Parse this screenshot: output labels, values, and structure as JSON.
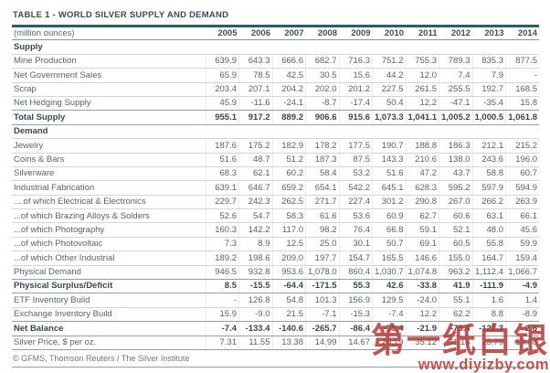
{
  "title": "TABLE 1 - WORLD SILVER SUPPLY AND DEMAND",
  "footer": "© GFMS, Thomson Reuters / The Silver Institute",
  "watermark": {
    "brand": "第一纸白银",
    "url": "www.diyizby.com"
  },
  "colors": {
    "title_rule_teal": "#17666c",
    "watermark_red": "#c2453c",
    "text_dark": "#3c4750",
    "text_gray": "#59636c"
  },
  "chart_data": {
    "type": "table",
    "title": "TABLE 1 - WORLD SILVER SUPPLY AND DEMAND",
    "unit": "(million ounces)",
    "columns": [
      "2005",
      "2006",
      "2007",
      "2008",
      "2009",
      "2010",
      "2011",
      "2012",
      "2013",
      "2014"
    ],
    "rows": [
      {
        "label": "Supply",
        "type": "section",
        "values": [
          "",
          "",
          "",
          "",
          "",
          "",
          "",
          "",
          "",
          ""
        ]
      },
      {
        "label": "Mine Production",
        "type": "data",
        "values": [
          "639.9",
          "643.3",
          "666.6",
          "682.7",
          "716.3",
          "751.2",
          "755.3",
          "789.3",
          "835.3",
          "877.5"
        ]
      },
      {
        "label": "Net Government Sales",
        "type": "data",
        "values": [
          "65.9",
          "78.5",
          "42.5",
          "30.5",
          "15.6",
          "44.2",
          "12.0",
          "7.4",
          "7.9",
          "-"
        ]
      },
      {
        "label": "Scrap",
        "type": "data",
        "values": [
          "203.4",
          "207.1",
          "204.2",
          "202.0",
          "201.2",
          "227.5",
          "261.5",
          "255.5",
          "192.7",
          "168.5"
        ]
      },
      {
        "label": "Net Hedging Supply",
        "type": "data",
        "values": [
          "45.9",
          "-11.6",
          "-24.1",
          "-8.7",
          "-17.4",
          "50.4",
          "12.2",
          "-47.1",
          "-35.4",
          "15.8"
        ]
      },
      {
        "label": "Total Supply",
        "type": "bold",
        "values": [
          "955.1",
          "917.2",
          "889.2",
          "906.6",
          "915.6",
          "1,073.3",
          "1,041.1",
          "1,005.2",
          "1,000.5",
          "1,061.8"
        ]
      },
      {
        "label": "Demand",
        "type": "section",
        "values": [
          "",
          "",
          "",
          "",
          "",
          "",
          "",
          "",
          "",
          ""
        ]
      },
      {
        "label": "Jewelry",
        "type": "data",
        "values": [
          "187.6",
          "175.2",
          "182.9",
          "178.2",
          "177.5",
          "190.7",
          "188.8",
          "186.3",
          "212.1",
          "215.2"
        ]
      },
      {
        "label": "Coins & Bars",
        "type": "data",
        "values": [
          "51.6",
          "48.7",
          "51.2",
          "187.3",
          "87.5",
          "143.3",
          "210.6",
          "138.0",
          "243.6",
          "196.0"
        ]
      },
      {
        "label": "Silverware",
        "type": "data",
        "values": [
          "68.3",
          "62.1",
          "60.2",
          "58.4",
          "53.2",
          "51.6",
          "47.2",
          "43.7",
          "58.8",
          "60.7"
        ]
      },
      {
        "label": "Industrial Fabrication",
        "type": "data",
        "values": [
          "639.1",
          "646.7",
          "659.2",
          "654.1",
          "542.2",
          "645.1",
          "628.3",
          "595.2",
          "597.9",
          "594.9"
        ]
      },
      {
        "label": "....of which Electrical & Electronics",
        "type": "data",
        "values": [
          "229.7",
          "242.3",
          "262.5",
          "271.7",
          "227.4",
          "301.2",
          "290.8",
          "267.0",
          "266.2",
          "263.9"
        ]
      },
      {
        "label": "...of which Brazing Alloys & Solders",
        "type": "data",
        "values": [
          "52.6",
          "54.7",
          "58.3",
          "61.6",
          "53.6",
          "60.9",
          "62.7",
          "60.6",
          "63.1",
          "66.1"
        ]
      },
      {
        "label": "...of which Photography",
        "type": "data",
        "values": [
          "160.3",
          "142.2",
          "117.0",
          "98.2",
          "76.4",
          "66.8",
          "59.1",
          "52.1",
          "48.0",
          "45.6"
        ]
      },
      {
        "label": "...of which Photovoltaic",
        "type": "data",
        "values": [
          "7.3",
          "8.9",
          "12.5",
          "25.0",
          "30.1",
          "50.7",
          "69.1",
          "60.5",
          "55.8",
          "59.9"
        ]
      },
      {
        "label": "...of which Other Industrial",
        "type": "data",
        "values": [
          "189.2",
          "198.6",
          "209.0",
          "197.7",
          "154.7",
          "165.5",
          "146.6",
          "155.0",
          "164.7",
          "159.4"
        ]
      },
      {
        "label": "Physical Demand",
        "type": "data",
        "values": [
          "946.5",
          "932.8",
          "953.6",
          "1,078.0",
          "860.4",
          "1,030.7",
          "1,074.8",
          "963.2",
          "1,112.4",
          "1,066.7"
        ]
      },
      {
        "label": "Physical Surplus/Deficit",
        "type": "bold",
        "values": [
          "8.5",
          "-15.5",
          "-64.4",
          "-171.5",
          "55.3",
          "42.6",
          "-33.8",
          "41.9",
          "-111.9",
          "-4.9"
        ]
      },
      {
        "label": "ETF Inventory Build",
        "type": "data",
        "values": [
          "-",
          "126.8",
          "54.8",
          "101.3",
          "156.9",
          "129.5",
          "-24.0",
          "55.1",
          "1.6",
          "1.4"
        ]
      },
      {
        "label": "Exchange Inventory Build",
        "type": "data",
        "values": [
          "15.9",
          "-9.0",
          "21.5",
          "-7.1",
          "-15.3",
          "-7.4",
          "12.2",
          "62.2",
          "8.8",
          "-8.9"
        ]
      },
      {
        "label": "Net Balance",
        "type": "bold",
        "values": [
          "-7.4",
          "-133.4",
          "-140.6",
          "-265.7",
          "-86.4",
          "-79.4",
          "-21.9",
          "-75.4",
          "-122.3",
          "2.6"
        ]
      },
      {
        "label": "Silver Price, $ per oz.",
        "type": "data",
        "values": [
          "7.31",
          "11.55",
          "13.38",
          "14.99",
          "14.67",
          "20.19",
          "35.12",
          "31.15",
          "23.79",
          "19.08"
        ]
      }
    ]
  }
}
